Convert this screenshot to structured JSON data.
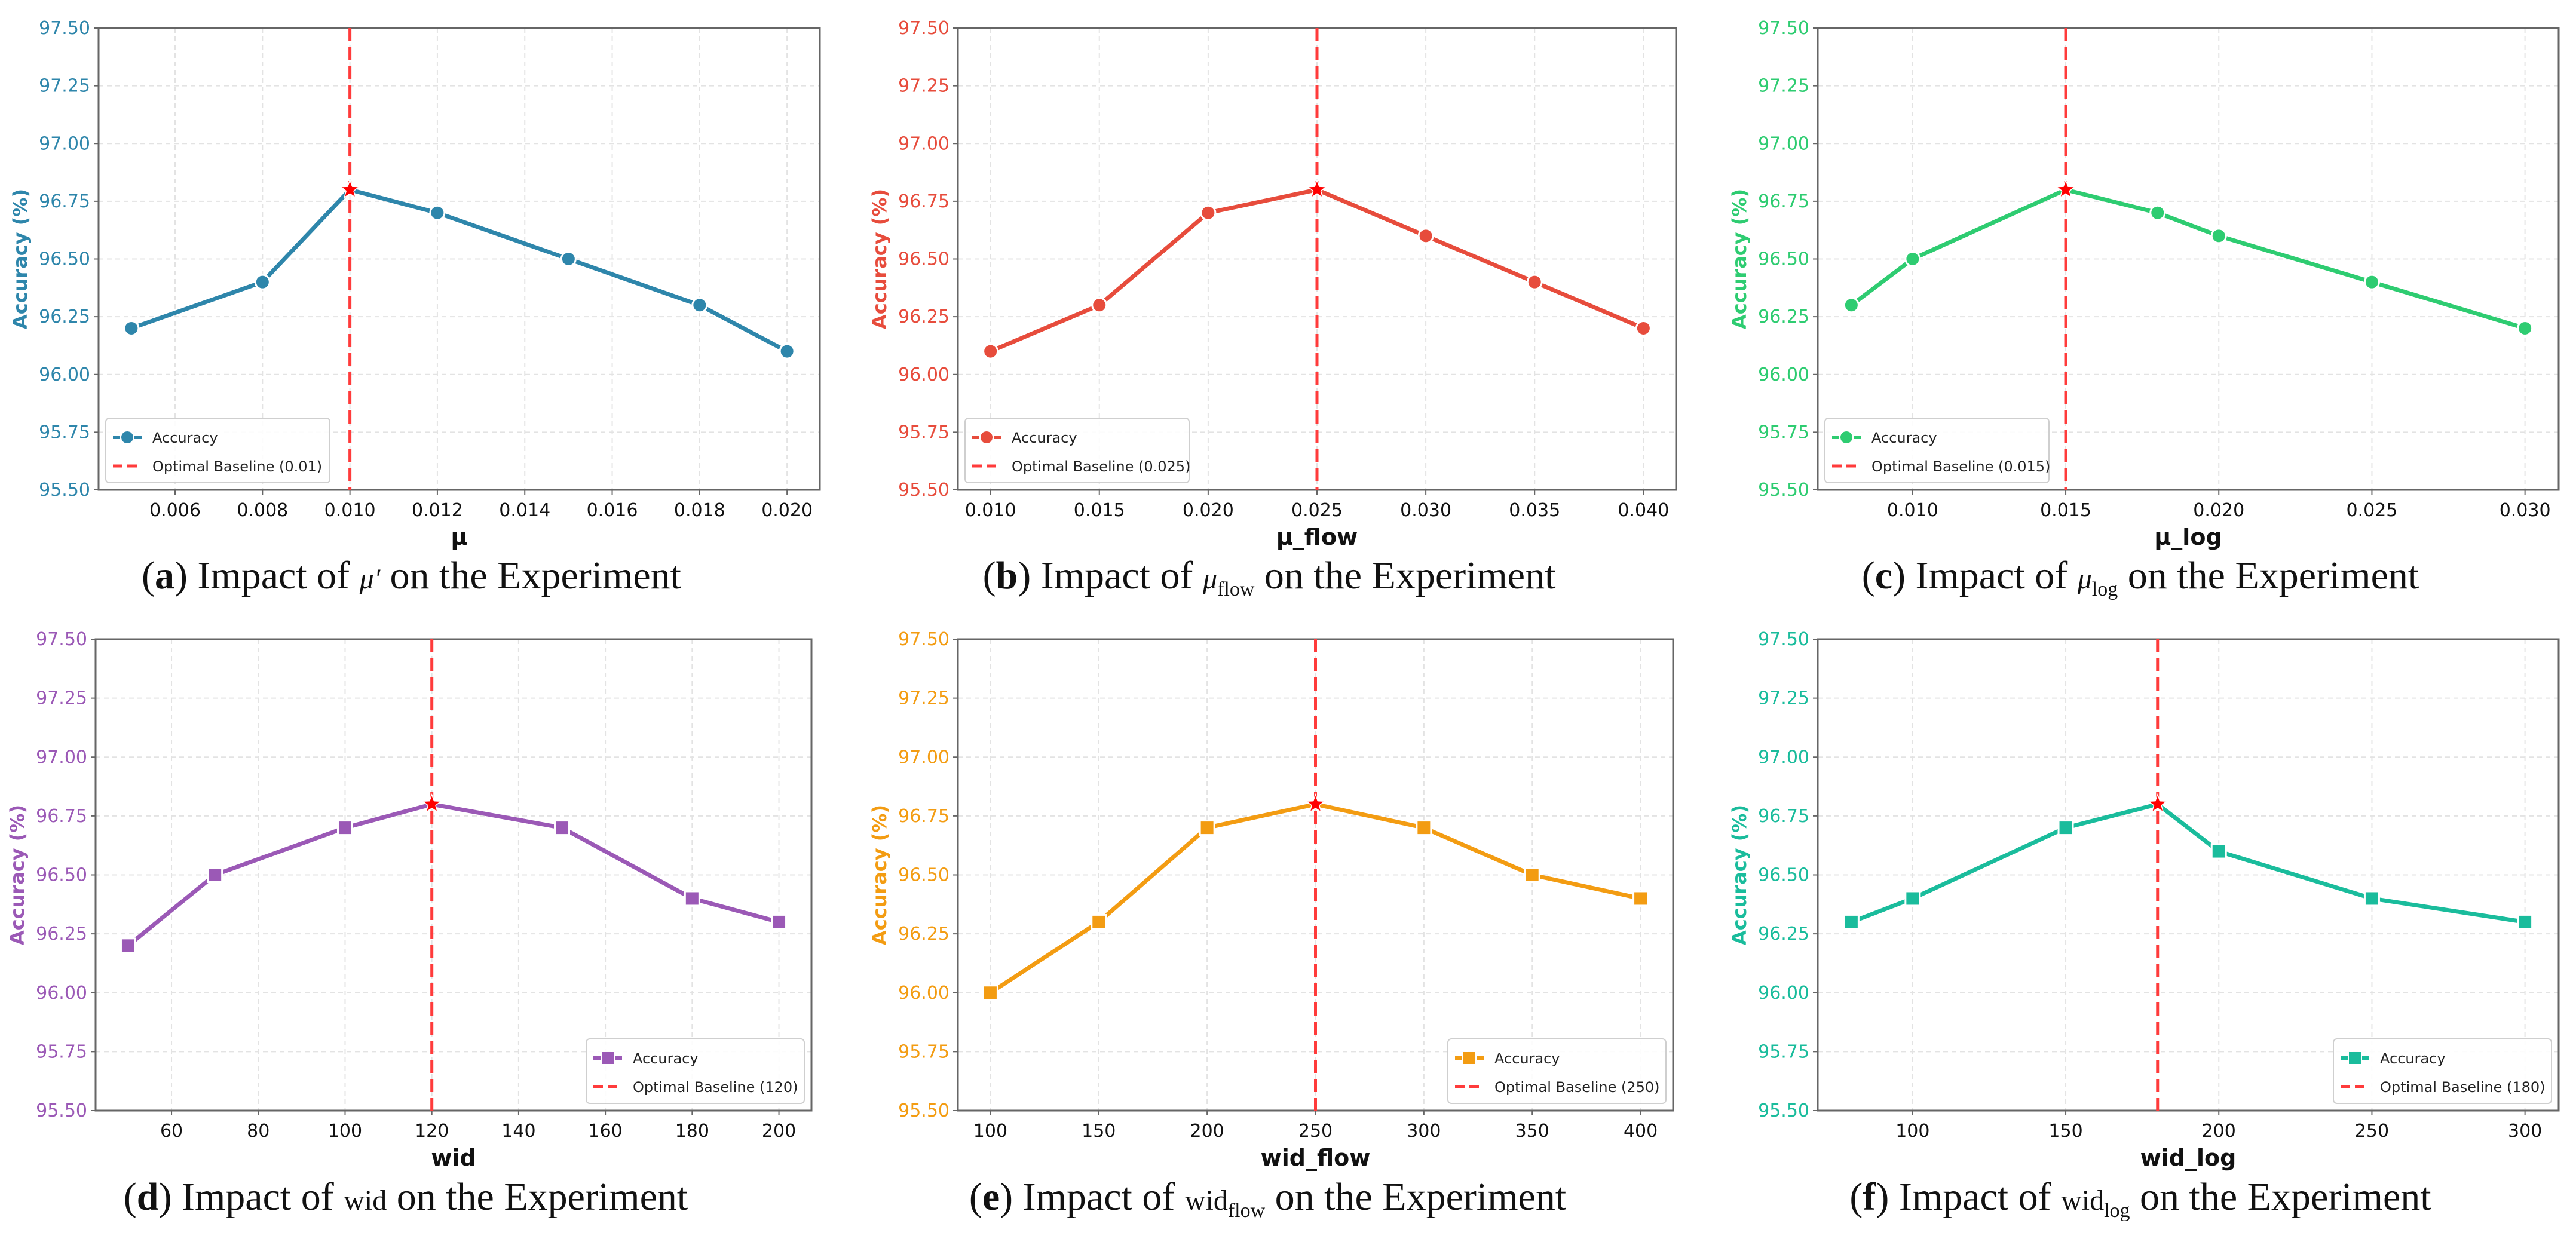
{
  "chart_data": [
    {
      "type": "line",
      "panel": "a",
      "title": "",
      "xlabel": "μ",
      "ylabel": "Accuracy (%)",
      "color": "#2e86ab",
      "marker": "circle",
      "x": [
        0.005,
        0.008,
        0.01,
        0.012,
        0.015,
        0.018,
        0.02
      ],
      "y": [
        96.2,
        96.4,
        96.8,
        96.7,
        96.5,
        96.3,
        96.1
      ],
      "xticks": [
        0.006,
        0.008,
        0.01,
        0.012,
        0.014,
        0.016,
        0.018,
        0.02
      ],
      "xtick_decimals": 3,
      "xlim": [
        0.00425,
        0.02075
      ],
      "yticks": [
        95.5,
        95.75,
        96.0,
        96.25,
        96.5,
        96.75,
        97.0,
        97.25,
        97.5
      ],
      "ylim": [
        95.5,
        97.5
      ],
      "optimal": 0.01,
      "legend": [
        "Accuracy",
        "Optimal Baseline (0.01)"
      ],
      "legend_position": "lower-left",
      "caption": {
        "label": "a",
        "prefix": ") Impact of",
        "symbol": "μ'",
        "sub": "",
        "suffix": "on the Experiment"
      }
    },
    {
      "type": "line",
      "panel": "b",
      "title": "",
      "xlabel": "μ_flow",
      "ylabel": "Accuracy (%)",
      "color": "#e74c3c",
      "marker": "circle",
      "x": [
        0.01,
        0.015,
        0.02,
        0.025,
        0.03,
        0.035,
        0.04
      ],
      "y": [
        96.1,
        96.3,
        96.7,
        96.8,
        96.6,
        96.4,
        96.2
      ],
      "xticks": [
        0.01,
        0.015,
        0.02,
        0.025,
        0.03,
        0.035,
        0.04
      ],
      "xtick_decimals": 3,
      "xlim": [
        0.0085,
        0.0415
      ],
      "yticks": [
        95.5,
        95.75,
        96.0,
        96.25,
        96.5,
        96.75,
        97.0,
        97.25,
        97.5
      ],
      "ylim": [
        95.5,
        97.5
      ],
      "optimal": 0.025,
      "legend": [
        "Accuracy",
        "Optimal Baseline (0.025)"
      ],
      "legend_position": "lower-left",
      "caption": {
        "label": "b",
        "prefix": ") Impact of",
        "symbol": "μ",
        "sub": "flow",
        "suffix": "on the Experiment"
      }
    },
    {
      "type": "line",
      "panel": "c",
      "title": "",
      "xlabel": "μ_log",
      "ylabel": "Accuracy (%)",
      "color": "#2ecc71",
      "marker": "circle",
      "x": [
        0.008,
        0.01,
        0.015,
        0.018,
        0.02,
        0.025,
        0.03
      ],
      "y": [
        96.3,
        96.5,
        96.8,
        96.7,
        96.6,
        96.4,
        96.2
      ],
      "xticks": [
        0.01,
        0.015,
        0.02,
        0.025,
        0.03
      ],
      "xtick_decimals": 3,
      "xlim": [
        0.0069,
        0.0311
      ],
      "yticks": [
        95.5,
        95.75,
        96.0,
        96.25,
        96.5,
        96.75,
        97.0,
        97.25,
        97.5
      ],
      "ylim": [
        95.5,
        97.5
      ],
      "optimal": 0.015,
      "legend": [
        "Accuracy",
        "Optimal Baseline (0.015)"
      ],
      "legend_position": "lower-left",
      "caption": {
        "label": "c",
        "prefix": ") Impact of",
        "symbol": "μ",
        "sub": "log",
        "suffix": "on the Experiment"
      }
    },
    {
      "type": "line",
      "panel": "d",
      "title": "",
      "xlabel": "wid",
      "ylabel": "Accuracy (%)",
      "color": "#9b59b6",
      "marker": "square",
      "x": [
        50,
        70,
        100,
        120,
        150,
        180,
        200
      ],
      "y": [
        96.2,
        96.5,
        96.7,
        96.8,
        96.7,
        96.4,
        96.3
      ],
      "xticks": [
        60,
        80,
        100,
        120,
        140,
        160,
        180,
        200
      ],
      "xtick_decimals": 0,
      "xlim": [
        42.5,
        207.5
      ],
      "yticks": [
        95.5,
        95.75,
        96.0,
        96.25,
        96.5,
        96.75,
        97.0,
        97.25,
        97.5
      ],
      "ylim": [
        95.5,
        97.5
      ],
      "optimal": 120,
      "legend": [
        "Accuracy",
        "Optimal Baseline (120)"
      ],
      "legend_position": "lower-right",
      "caption": {
        "label": "d",
        "prefix": ") Impact of",
        "symbol": "wid",
        "sub": "",
        "suffix": "on the Experiment"
      }
    },
    {
      "type": "line",
      "panel": "e",
      "title": "",
      "xlabel": "wid_flow",
      "ylabel": "Accuracy (%)",
      "color": "#f39c12",
      "marker": "square",
      "x": [
        100,
        150,
        200,
        250,
        300,
        350,
        400
      ],
      "y": [
        96.0,
        96.3,
        96.7,
        96.8,
        96.7,
        96.5,
        96.4
      ],
      "xticks": [
        100,
        150,
        200,
        250,
        300,
        350,
        400
      ],
      "xtick_decimals": 0,
      "xlim": [
        85,
        415
      ],
      "yticks": [
        95.5,
        95.75,
        96.0,
        96.25,
        96.5,
        96.75,
        97.0,
        97.25,
        97.5
      ],
      "ylim": [
        95.5,
        97.5
      ],
      "optimal": 250,
      "legend": [
        "Accuracy",
        "Optimal Baseline (250)"
      ],
      "legend_position": "lower-right",
      "caption": {
        "label": "e",
        "prefix": ") Impact of",
        "symbol": "wid",
        "sub": "flow",
        "suffix": "on the Experiment"
      }
    },
    {
      "type": "line",
      "panel": "f",
      "title": "",
      "xlabel": "wid_log",
      "ylabel": "Accuracy (%)",
      "color": "#1abc9c",
      "marker": "square",
      "x": [
        80,
        100,
        150,
        180,
        200,
        250,
        300
      ],
      "y": [
        96.3,
        96.4,
        96.7,
        96.8,
        96.6,
        96.4,
        96.3
      ],
      "xticks": [
        100,
        150,
        200,
        250,
        300
      ],
      "xtick_decimals": 0,
      "xlim": [
        69,
        311
      ],
      "yticks": [
        95.5,
        95.75,
        96.0,
        96.25,
        96.5,
        96.75,
        97.0,
        97.25,
        97.5
      ],
      "ylim": [
        95.5,
        97.5
      ],
      "optimal": 180,
      "legend": [
        "Accuracy",
        "Optimal Baseline (180)"
      ],
      "legend_position": "lower-right",
      "caption": {
        "label": "f",
        "prefix": ") Impact of",
        "symbol": "wid",
        "sub": "log",
        "suffix": "on the Experiment"
      }
    }
  ],
  "colors": {
    "baseline": "#ff3b3b",
    "star": "#ff0000",
    "grid": "#e3e3e3",
    "axis": "#666666"
  }
}
